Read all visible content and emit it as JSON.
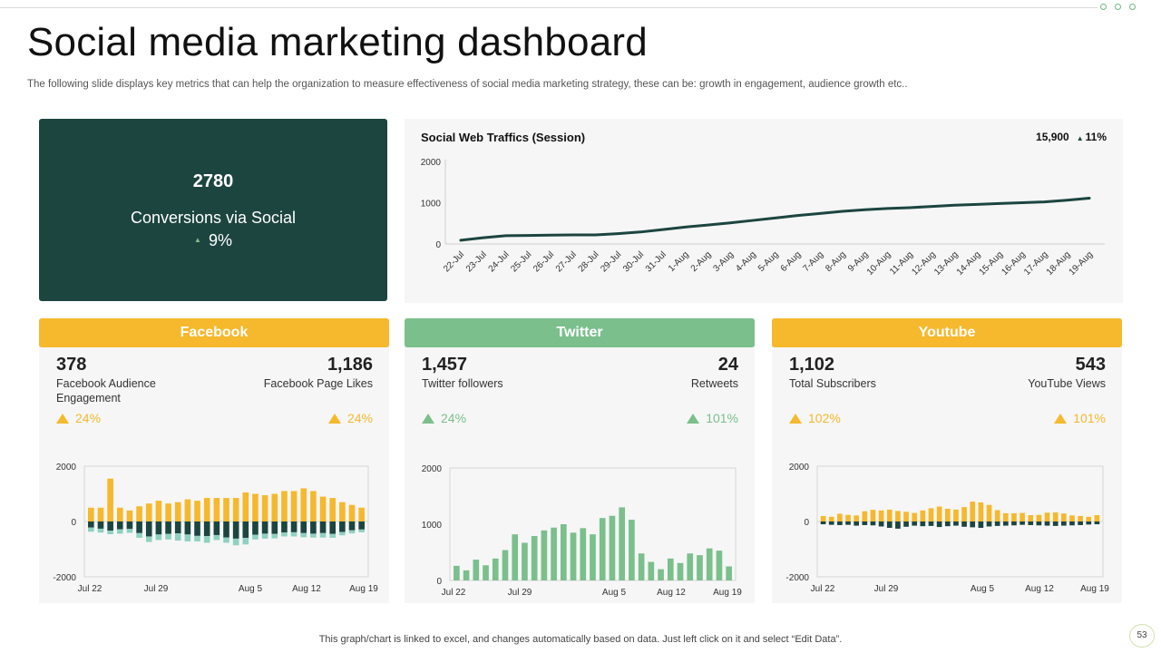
{
  "slide": {
    "title": "Social media marketing dashboard",
    "subtitle": "The following slide displays key metrics that can help the organization to measure effectiveness of social media marketing strategy, these can be: growth in engagement, audience growth etc..",
    "footer_note": "This graph/chart is linked to excel,  and changes automatically based on data. Just left click on it and select “Edit Data”.",
    "page_number": "53"
  },
  "kpi": {
    "value": "2780",
    "label": "Conversions via Social",
    "change": "9%"
  },
  "colors": {
    "dark_green": "#1c4540",
    "yellow": "#f6b82c",
    "green": "#7bbf8c",
    "teal": "#8fd1c0"
  },
  "traffic": {
    "title": "Social Web Traffics (Session)",
    "total": "15,900",
    "change": "11%"
  },
  "panels": [
    {
      "header": "Facebook",
      "left": {
        "value": "378",
        "label": "Facebook Audience Engagement",
        "change": "24%"
      },
      "right": {
        "value": "1,186",
        "label": "Facebook Page Likes",
        "change": "24%"
      }
    },
    {
      "header": "Twitter",
      "left": {
        "value": "1,457",
        "label": "Twitter followers",
        "change": "24%"
      },
      "right": {
        "value": "24",
        "label": "Retweets",
        "change": "101%"
      }
    },
    {
      "header": "Youtube",
      "left": {
        "value": "1,102",
        "label": "Total Subscribers",
        "change": "102%"
      },
      "right": {
        "value": "543",
        "label": "YouTube Views",
        "change": "101%"
      }
    }
  ],
  "chart_data": [
    {
      "type": "line",
      "title": "Social Web Traffics (Session)",
      "categories": [
        "22-Jul",
        "23-Jul",
        "24-Jul",
        "25-Jul",
        "26-Jul",
        "27-Jul",
        "28-Jul",
        "29-Jul",
        "30-Jul",
        "31-Jul",
        "1-Aug",
        "2-Aug",
        "3-Aug",
        "4-Aug",
        "5-Aug",
        "6-Aug",
        "7-Aug",
        "8-Aug",
        "9-Aug",
        "10-Aug",
        "11-Aug",
        "12-Aug",
        "13-Aug",
        "14-Aug",
        "15-Aug",
        "16-Aug",
        "17-Aug",
        "18-Aug",
        "19-Aug"
      ],
      "series": [
        {
          "values": [
            90,
            150,
            200,
            205,
            215,
            220,
            220,
            250,
            290,
            350,
            410,
            460,
            510,
            570,
            630,
            690,
            740,
            790,
            830,
            860,
            880,
            910,
            940,
            960,
            980,
            1000,
            1020,
            1060,
            1110
          ]
        }
      ],
      "ylim": [
        0,
        2000
      ],
      "yticks": [
        0,
        1000,
        2000
      ],
      "grid": false
    },
    {
      "type": "bar",
      "stacked": true,
      "x_tick_labels": [
        "Jul 22",
        "Jul 29",
        "Aug 5",
        "Aug 12",
        "Aug 19"
      ],
      "ylim": [
        -2000,
        2000
      ],
      "yticks": [
        -2000,
        0,
        2000
      ],
      "series": [
        {
          "color": "#f6b82c",
          "values": [
            500,
            500,
            1550,
            500,
            400,
            550,
            650,
            750,
            650,
            700,
            800,
            750,
            850,
            850,
            850,
            850,
            1050,
            1000,
            950,
            1000,
            1100,
            1100,
            1200,
            1100,
            900,
            850,
            700,
            600,
            500
          ]
        },
        {
          "color": "#1c4540",
          "values": [
            -220,
            -260,
            -330,
            -280,
            -270,
            -420,
            -540,
            -470,
            -450,
            -430,
            -470,
            -520,
            -530,
            -490,
            -580,
            -620,
            -590,
            -480,
            -440,
            -450,
            -400,
            -390,
            -420,
            -440,
            -420,
            -450,
            -380,
            -320,
            -290
          ]
        },
        {
          "color": "#8fd1c0",
          "values": [
            -150,
            -140,
            -130,
            -160,
            -140,
            -170,
            -200,
            -200,
            -200,
            -260,
            -250,
            -200,
            -240,
            -180,
            -190,
            -240,
            -240,
            -170,
            -180,
            -160,
            -140,
            -150,
            -150,
            -140,
            -160,
            -140,
            -120,
            -110,
            -100
          ]
        }
      ]
    },
    {
      "type": "bar",
      "x_tick_labels": [
        "Jul 22",
        "Jul 29",
        "Aug 5",
        "Aug 12",
        "Aug 19"
      ],
      "ylim": [
        0,
        2000
      ],
      "yticks": [
        0,
        1000,
        2000
      ],
      "series": [
        {
          "color": "#7bbf8c",
          "values": [
            260,
            180,
            370,
            270,
            390,
            540,
            820,
            670,
            790,
            890,
            940,
            1000,
            850,
            930,
            820,
            1110,
            1150,
            1300,
            1080,
            480,
            330,
            200,
            390,
            310,
            480,
            450,
            570,
            530,
            250
          ]
        }
      ]
    },
    {
      "type": "bar",
      "stacked": true,
      "x_tick_labels": [
        "Jul 22",
        "Jul 29",
        "Aug 5",
        "Aug 12",
        "Aug 19"
      ],
      "ylim": [
        -2000,
        2000
      ],
      "yticks": [
        -2000,
        0,
        2000
      ],
      "series": [
        {
          "color": "#f6b82c",
          "values": [
            200,
            170,
            280,
            240,
            220,
            370,
            420,
            400,
            430,
            380,
            350,
            310,
            400,
            480,
            540,
            460,
            430,
            520,
            720,
            690,
            600,
            410,
            300,
            300,
            310,
            230,
            240,
            320,
            330,
            290,
            220,
            200,
            170,
            230
          ]
        },
        {
          "color": "#1c4540",
          "values": [
            -100,
            -120,
            -130,
            -120,
            -150,
            -130,
            -140,
            -180,
            -230,
            -260,
            -190,
            -150,
            -170,
            -160,
            -200,
            -170,
            -150,
            -190,
            -210,
            -230,
            -180,
            -160,
            -150,
            -140,
            -120,
            -130,
            -140,
            -150,
            -160,
            -150,
            -140,
            -130,
            -110,
            -100
          ]
        }
      ]
    }
  ]
}
